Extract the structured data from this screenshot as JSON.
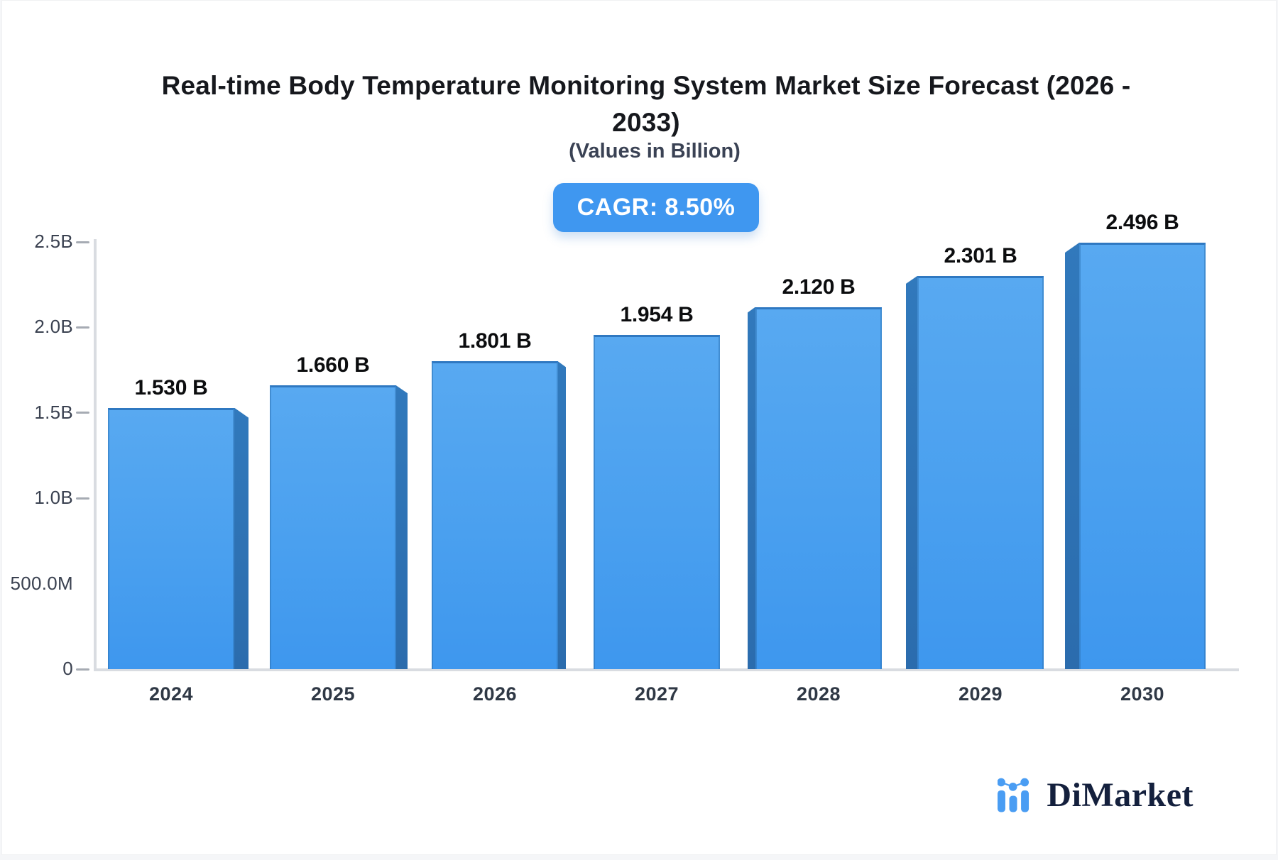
{
  "page": {
    "background_color": "#f5f6f8",
    "card_color": "#ffffff"
  },
  "header": {
    "title_line1": "Real-time Body Temperature Monitoring System Market Size Forecast (2026 -",
    "title_line2": "2033)",
    "subtitle": "(Values in Billion)",
    "cagr_badge": "CAGR: 8.50%",
    "badge_color": "#3f97f0"
  },
  "chart_data": {
    "type": "bar",
    "title": "Real-time Body Temperature Monitoring System Market Size Forecast (2026 - 2033)",
    "subtitle": "(Values in Billion)",
    "categories": [
      "2024",
      "2025",
      "2026",
      "2027",
      "2028",
      "2029",
      "2030"
    ],
    "values": [
      1.53,
      1.66,
      1.801,
      1.954,
      2.12,
      2.301,
      2.496
    ],
    "bar_labels": [
      "1.530 B",
      "1.660 B",
      "1.801 B",
      "1.954 B",
      "2.120 B",
      "2.301 B",
      "2.496 B"
    ],
    "xlabel": "",
    "ylabel": "",
    "ylim": [
      0,
      2.5
    ],
    "y_ticks": [
      {
        "label": "2.5B",
        "value": 2.5,
        "dash": true
      },
      {
        "label": "2.0B",
        "value": 2.0,
        "dash": true
      },
      {
        "label": "1.5B",
        "value": 1.5,
        "dash": true
      },
      {
        "label": "1.0B",
        "value": 1.0,
        "dash": true
      },
      {
        "label": "500.0M",
        "value": 0.5,
        "dash": false
      },
      {
        "label": "0",
        "value": 0.0,
        "dash": true
      }
    ],
    "grid": false,
    "legend_position": "none",
    "bar_color_top": "#58a9f1",
    "bar_color_bottom": "#3e97ee",
    "bar_side_color": "#2e72b5",
    "cagr": "8.50%"
  },
  "footer": {
    "brand": "DiMarket",
    "logo_icon": "dimarket-bars-icon",
    "logo_blue": "#4a9df3",
    "logo_navy": "#14203d"
  }
}
